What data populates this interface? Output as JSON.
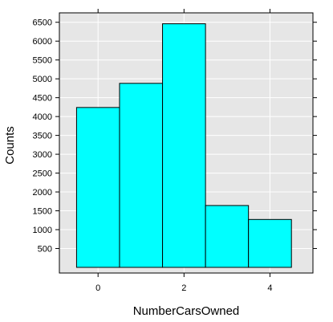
{
  "chart_data": {
    "type": "bar",
    "xlabel": "NumberCarsOwned",
    "ylabel": "Counts",
    "categories": [
      0,
      1,
      2,
      3,
      4
    ],
    "values": [
      4240,
      4880,
      6460,
      1640,
      1270
    ],
    "xlim": [
      -0.9,
      5.0
    ],
    "ylim": [
      -150,
      6750
    ],
    "x_ticks": [
      0,
      2,
      4
    ],
    "y_ticks": [
      500,
      1000,
      1500,
      2000,
      2500,
      3000,
      3500,
      4000,
      4500,
      5000,
      5500,
      6000,
      6500
    ],
    "grid": true,
    "legend": "none",
    "colors": {
      "bar_fill": "#00ffff",
      "bar_stroke": "#000000",
      "panel_background": "#e6e6e6",
      "grid": "#ffffff",
      "frame": "#000000"
    }
  }
}
